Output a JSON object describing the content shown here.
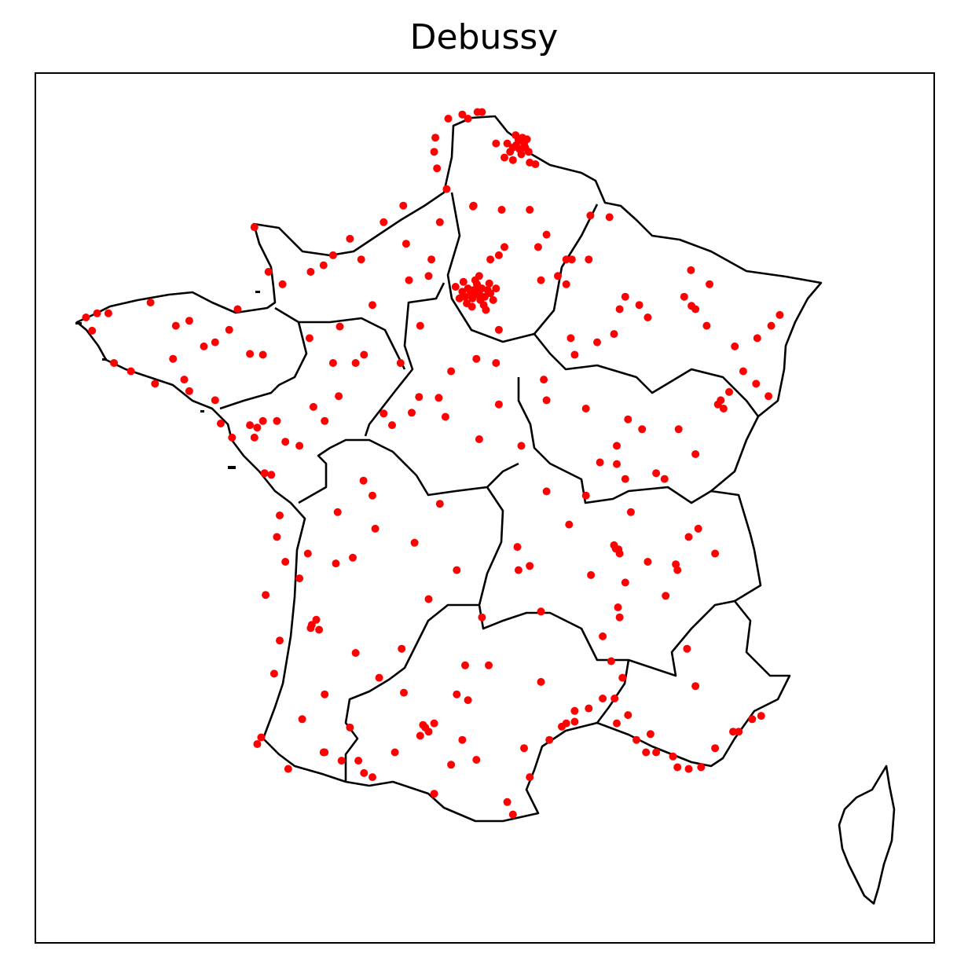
{
  "title": "Debussy",
  "colors": {
    "marker": "#ff0000",
    "border": "#000000",
    "background": "#ffffff"
  },
  "chart_data": {
    "type": "scatter",
    "title": "Debussy",
    "marker_color": "#ff0000",
    "xlim": [
      -5.5,
      10.5
    ],
    "ylim": [
      41.0,
      51.5
    ],
    "grid": false,
    "axes_ticks": false,
    "points": [
      [
        2.35,
        48.86
      ],
      [
        2.3,
        48.88
      ],
      [
        2.4,
        48.84
      ],
      [
        2.32,
        48.82
      ],
      [
        2.45,
        48.9
      ],
      [
        2.25,
        48.85
      ],
      [
        2.38,
        48.92
      ],
      [
        2.28,
        48.78
      ],
      [
        2.5,
        48.8
      ],
      [
        2.2,
        48.9
      ],
      [
        2.42,
        48.76
      ],
      [
        2.15,
        48.8
      ],
      [
        2.55,
        48.88
      ],
      [
        2.36,
        48.95
      ],
      [
        2.18,
        48.72
      ],
      [
        2.6,
        48.84
      ],
      [
        2.1,
        48.86
      ],
      [
        2.48,
        48.7
      ],
      [
        2.33,
        49.0
      ],
      [
        2.05,
        48.78
      ],
      [
        2.65,
        48.76
      ],
      [
        2.27,
        48.68
      ],
      [
        2.58,
        48.96
      ],
      [
        1.98,
        48.92
      ],
      [
        2.7,
        48.9
      ],
      [
        2.4,
        49.05
      ],
      [
        2.12,
        48.98
      ],
      [
        2.52,
        48.64
      ],
      [
        3.06,
        50.63
      ],
      [
        3.1,
        50.69
      ],
      [
        3.17,
        50.72
      ],
      [
        3.0,
        50.6
      ],
      [
        3.12,
        50.58
      ],
      [
        3.2,
        50.65
      ],
      [
        2.95,
        50.55
      ],
      [
        3.25,
        50.7
      ],
      [
        3.05,
        50.75
      ],
      [
        2.9,
        50.65
      ],
      [
        3.15,
        50.52
      ],
      [
        3.22,
        50.6
      ],
      [
        2.85,
        50.48
      ],
      [
        3.0,
        50.45
      ],
      [
        3.28,
        50.55
      ],
      [
        3.3,
        50.42
      ],
      [
        3.4,
        50.4
      ],
      [
        2.37,
        51.03
      ],
      [
        2.1,
        51.0
      ],
      [
        1.85,
        50.95
      ],
      [
        1.62,
        50.72
      ],
      [
        1.6,
        50.55
      ],
      [
        1.65,
        50.35
      ],
      [
        2.2,
        50.95
      ],
      [
        2.45,
        51.03
      ],
      [
        2.7,
        50.65
      ],
      [
        1.82,
        50.1
      ],
      [
        2.3,
        49.9
      ],
      [
        2.29,
        49.89
      ],
      [
        1.7,
        49.7
      ],
      [
        2.8,
        49.85
      ],
      [
        3.3,
        49.85
      ],
      [
        3.6,
        49.55
      ],
      [
        3.95,
        49.25
      ],
      [
        4.05,
        49.25
      ],
      [
        3.45,
        49.4
      ],
      [
        2.85,
        49.4
      ],
      [
        2.6,
        49.25
      ],
      [
        3.8,
        49.05
      ],
      [
        3.5,
        49.0
      ],
      [
        3.95,
        48.95
      ],
      [
        2.75,
        49.3
      ],
      [
        1.5,
        49.05
      ],
      [
        4.03,
        48.3
      ],
      [
        4.1,
        48.1
      ],
      [
        4.8,
        48.35
      ],
      [
        4.5,
        48.25
      ],
      [
        4.9,
        48.65
      ],
      [
        5.0,
        48.8
      ],
      [
        5.25,
        48.7
      ],
      [
        4.38,
        49.78
      ],
      [
        4.72,
        49.76
      ],
      [
        6.17,
        49.12
      ],
      [
        6.18,
        48.69
      ],
      [
        6.25,
        48.65
      ],
      [
        6.05,
        48.8
      ],
      [
        6.45,
        48.45
      ],
      [
        7.75,
        48.58
      ],
      [
        7.6,
        48.45
      ],
      [
        7.35,
        48.3
      ],
      [
        7.33,
        47.75
      ],
      [
        7.55,
        47.6
      ],
      [
        7.1,
        47.9
      ],
      [
        6.95,
        48.2
      ],
      [
        5.4,
        48.55
      ],
      [
        4.35,
        49.25
      ],
      [
        6.5,
        48.95
      ],
      [
        5.05,
        47.32
      ],
      [
        5.3,
        47.2
      ],
      [
        4.85,
        47.0
      ],
      [
        4.55,
        46.8
      ],
      [
        4.3,
        46.4
      ],
      [
        4.85,
        46.78
      ],
      [
        5.95,
        47.2
      ],
      [
        6.85,
        47.65
      ],
      [
        6.7,
        47.55
      ],
      [
        6.65,
        47.5
      ],
      [
        6.75,
        47.45
      ],
      [
        5.55,
        46.67
      ],
      [
        6.25,
        46.9
      ],
      [
        3.55,
        47.8
      ],
      [
        3.6,
        47.55
      ],
      [
        3.15,
        47.0
      ],
      [
        4.3,
        47.45
      ],
      [
        5.0,
        46.6
      ],
      [
        5.7,
        46.6
      ],
      [
        1.9,
        47.9
      ],
      [
        1.68,
        47.58
      ],
      [
        1.33,
        47.59
      ],
      [
        1.2,
        47.4
      ],
      [
        0.7,
        47.39
      ],
      [
        0.85,
        47.25
      ],
      [
        2.4,
        47.08
      ],
      [
        2.75,
        47.5
      ],
      [
        1.35,
        48.45
      ],
      [
        1.0,
        48.0
      ],
      [
        1.8,
        47.35
      ],
      [
        2.35,
        48.05
      ],
      [
        2.7,
        48.0
      ],
      [
        2.75,
        48.4
      ],
      [
        0.35,
        48.1
      ],
      [
        -1.55,
        47.22
      ],
      [
        -1.68,
        47.25
      ],
      [
        -1.6,
        47.1
      ],
      [
        -1.45,
        47.3
      ],
      [
        -0.55,
        47.47
      ],
      [
        -0.35,
        47.3
      ],
      [
        -0.2,
        48.0
      ],
      [
        0.2,
        48.0
      ],
      [
        -0.62,
        48.3
      ],
      [
        -2.2,
        47.27
      ],
      [
        -2.0,
        47.1
      ],
      [
        -1.3,
        46.65
      ],
      [
        -0.8,
        47.0
      ],
      [
        -1.42,
        46.67
      ],
      [
        -2.3,
        47.55
      ],
      [
        -1.05,
        47.05
      ],
      [
        -1.2,
        47.3
      ],
      [
        -0.1,
        47.6
      ],
      [
        -1.68,
        48.11
      ],
      [
        -1.45,
        48.1
      ],
      [
        -2.76,
        48.51
      ],
      [
        -3.45,
        48.73
      ],
      [
        -4.49,
        48.39
      ],
      [
        -4.1,
        48.0
      ],
      [
        -3.37,
        47.75
      ],
      [
        -2.76,
        47.66
      ],
      [
        -2.5,
        48.2
      ],
      [
        -3.0,
        48.45
      ],
      [
        -2.85,
        47.8
      ],
      [
        -4.2,
        48.6
      ],
      [
        -1.9,
        48.65
      ],
      [
        -2.05,
        48.4
      ],
      [
        -3.8,
        47.9
      ],
      [
        -4.6,
        48.55
      ],
      [
        -4.4,
        48.6
      ],
      [
        -3.05,
        48.05
      ],
      [
        -2.3,
        48.25
      ],
      [
        -1.6,
        49.64
      ],
      [
        -1.35,
        49.1
      ],
      [
        -0.37,
        49.18
      ],
      [
        -0.2,
        49.3
      ],
      [
        0.1,
        49.5
      ],
      [
        0.3,
        49.25
      ],
      [
        1.1,
        49.44
      ],
      [
        1.05,
        49.9
      ],
      [
        0.7,
        49.7
      ],
      [
        -0.08,
        48.44
      ],
      [
        0.5,
        48.7
      ],
      [
        1.15,
        49.0
      ],
      [
        1.55,
        49.25
      ],
      [
        -0.6,
        49.1
      ],
      [
        -1.1,
        48.95
      ],
      [
        -0.58,
        44.84
      ],
      [
        -0.6,
        44.8
      ],
      [
        -0.5,
        44.9
      ],
      [
        -0.45,
        44.78
      ],
      [
        -1.15,
        44.65
      ],
      [
        -1.25,
        44.25
      ],
      [
        -0.35,
        43.3
      ],
      [
        -0.37,
        43.3
      ],
      [
        -1.48,
        43.48
      ],
      [
        -1.55,
        43.4
      ],
      [
        -0.65,
        45.7
      ],
      [
        0.15,
        45.65
      ],
      [
        -0.15,
        45.58
      ],
      [
        -1.15,
        46.16
      ],
      [
        -1.2,
        45.9
      ],
      [
        -1.05,
        45.6
      ],
      [
        0.34,
        46.58
      ],
      [
        0.5,
        46.4
      ],
      [
        1.25,
        45.83
      ],
      [
        1.5,
        45.15
      ],
      [
        2.0,
        45.5
      ],
      [
        1.02,
        44.55
      ],
      [
        0.62,
        44.2
      ],
      [
        0.2,
        44.5
      ],
      [
        -0.35,
        44.0
      ],
      [
        -0.75,
        43.7
      ],
      [
        -1.0,
        43.1
      ],
      [
        -0.05,
        43.2
      ],
      [
        0.25,
        43.2
      ],
      [
        0.35,
        43.05
      ],
      [
        -0.12,
        46.2
      ],
      [
        -1.4,
        45.2
      ],
      [
        -0.8,
        45.4
      ],
      [
        0.55,
        46.0
      ],
      [
        1.7,
        46.3
      ],
      [
        1.44,
        43.6
      ],
      [
        1.4,
        43.63
      ],
      [
        1.5,
        43.55
      ],
      [
        1.35,
        43.5
      ],
      [
        1.6,
        43.65
      ],
      [
        2.35,
        43.21
      ],
      [
        2.9,
        42.7
      ],
      [
        3.0,
        42.55
      ],
      [
        3.2,
        43.35
      ],
      [
        3.87,
        43.61
      ],
      [
        3.95,
        43.65
      ],
      [
        4.1,
        43.8
      ],
      [
        4.35,
        43.83
      ],
      [
        4.6,
        43.95
      ],
      [
        1.06,
        44.02
      ],
      [
        2.15,
        44.35
      ],
      [
        2.57,
        44.35
      ],
      [
        3.5,
        44.15
      ],
      [
        2.2,
        43.93
      ],
      [
        2.1,
        43.45
      ],
      [
        0.9,
        43.3
      ],
      [
        0.5,
        43.0
      ],
      [
        1.6,
        42.8
      ],
      [
        2.0,
        44.0
      ],
      [
        3.3,
        43.0
      ],
      [
        4.1,
        43.67
      ],
      [
        3.65,
        43.45
      ],
      [
        1.9,
        43.15
      ],
      [
        0.1,
        43.6
      ],
      [
        4.83,
        45.76
      ],
      [
        4.88,
        45.75
      ],
      [
        4.8,
        45.8
      ],
      [
        4.9,
        45.7
      ],
      [
        5.72,
        45.19
      ],
      [
        5.9,
        45.57
      ],
      [
        6.13,
        45.9
      ],
      [
        6.3,
        46.0
      ],
      [
        5.93,
        45.5
      ],
      [
        4.39,
        45.44
      ],
      [
        3.08,
        45.78
      ],
      [
        3.3,
        45.55
      ],
      [
        3.1,
        45.5
      ],
      [
        4.87,
        45.05
      ],
      [
        4.9,
        44.93
      ],
      [
        4.6,
        44.7
      ],
      [
        5.1,
        46.2
      ],
      [
        6.6,
        45.7
      ],
      [
        2.45,
        44.93
      ],
      [
        3.5,
        45.0
      ],
      [
        4.0,
        46.05
      ],
      [
        5.4,
        45.6
      ],
      [
        5.0,
        45.35
      ],
      [
        4.75,
        44.4
      ],
      [
        3.6,
        46.45
      ],
      [
        5.37,
        43.3
      ],
      [
        5.45,
        43.52
      ],
      [
        5.93,
        43.12
      ],
      [
        6.13,
        43.1
      ],
      [
        6.35,
        43.12
      ],
      [
        6.92,
        43.55
      ],
      [
        7.02,
        43.55
      ],
      [
        7.26,
        43.7
      ],
      [
        7.42,
        43.74
      ],
      [
        4.81,
        43.95
      ],
      [
        5.05,
        43.75
      ],
      [
        6.25,
        44.1
      ],
      [
        6.1,
        44.55
      ],
      [
        5.2,
        43.45
      ],
      [
        4.85,
        43.65
      ],
      [
        5.55,
        43.3
      ],
      [
        6.6,
        43.35
      ],
      [
        5.85,
        43.25
      ],
      [
        4.95,
        44.2
      ]
    ]
  }
}
